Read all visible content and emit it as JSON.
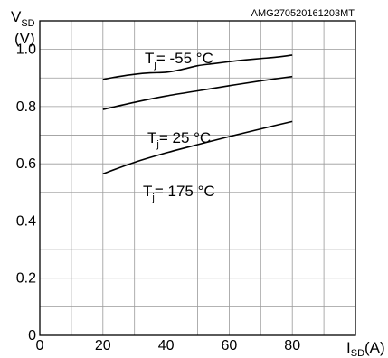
{
  "chart_data": {
    "type": "line",
    "code_label": "AMG270520161203MT",
    "y_axis": {
      "symbol": "V",
      "subscript": "SD",
      "unit": "(V)",
      "ylim": [
        0,
        1.1
      ],
      "major_step": 0.1,
      "tick_values": [
        0,
        0.2,
        0.4,
        0.6,
        0.8,
        1.0
      ],
      "tick_labels": [
        "0",
        "0.2",
        "0.4",
        "0.6",
        "0.8",
        "1.0"
      ]
    },
    "x_axis": {
      "symbol": "I",
      "subscript": "SD",
      "unit": "(A)",
      "xlim": [
        0,
        100
      ],
      "major_step": 10,
      "tick_values": [
        0,
        20,
        40,
        60,
        80
      ],
      "tick_labels": [
        "0",
        "20",
        "40",
        "60",
        "80"
      ]
    },
    "grid": true,
    "series": [
      {
        "name": "Tj= -55 °C",
        "label_main": "T",
        "label_sub": "j",
        "label_rest": "= -55 °C",
        "x": [
          20,
          25,
          30,
          35,
          40,
          45,
          50,
          55,
          60,
          65,
          70,
          75,
          80
        ],
        "y": [
          0.895,
          0.905,
          0.913,
          0.918,
          0.92,
          0.93,
          0.943,
          0.95,
          0.957,
          0.963,
          0.968,
          0.973,
          0.98
        ]
      },
      {
        "name": "Tj= 25 °C",
        "label_main": "T",
        "label_sub": "j",
        "label_rest": "= 25 °C",
        "x": [
          20,
          30,
          40,
          50,
          60,
          70,
          80
        ],
        "y": [
          0.79,
          0.815,
          0.837,
          0.855,
          0.873,
          0.89,
          0.905
        ]
      },
      {
        "name": "Tj= 175 °C",
        "label_main": "T",
        "label_sub": "j",
        "label_rest": "= 175 °C",
        "x": [
          20,
          30,
          40,
          50,
          60,
          70,
          80
        ],
        "y": [
          0.565,
          0.605,
          0.638,
          0.667,
          0.695,
          0.722,
          0.748
        ]
      }
    ]
  }
}
